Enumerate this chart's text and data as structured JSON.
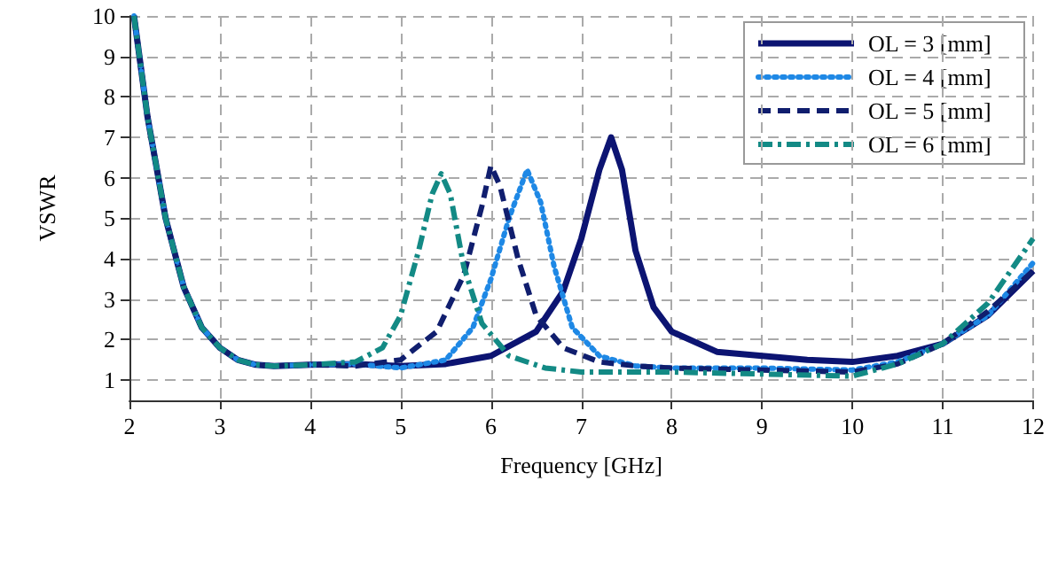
{
  "chart_data": {
    "type": "line",
    "xlabel": "Frequency [GHz]",
    "ylabel": "VSWR",
    "xlim": [
      2,
      12
    ],
    "xticks": [
      2,
      3,
      4,
      5,
      6,
      7,
      8,
      9,
      10,
      11,
      12
    ],
    "ylim": [
      0.5,
      10
    ],
    "yticks": [
      1,
      2,
      3,
      4,
      5,
      6,
      7,
      8,
      9,
      10
    ],
    "grid": true,
    "legend": "top right",
    "marker": "none",
    "series": [
      {
        "name": "OL = 3 [mm]",
        "color": "#0c1472",
        "line_style": "solid",
        "x": [
          2.05,
          2.2,
          2.4,
          2.6,
          2.8,
          3.0,
          3.2,
          3.4,
          3.6,
          4,
          4.5,
          5,
          5.5,
          6,
          6.5,
          6.8,
          7.0,
          7.2,
          7.33,
          7.45,
          7.6,
          7.8,
          8.0,
          8.5,
          9,
          9.5,
          10,
          10.5,
          11,
          11.5,
          12
        ],
        "values": [
          10,
          7.5,
          5,
          3.3,
          2.3,
          1.8,
          1.5,
          1.38,
          1.35,
          1.38,
          1.4,
          1.35,
          1.4,
          1.6,
          2.2,
          3.2,
          4.5,
          6.2,
          7,
          6.2,
          4.2,
          2.8,
          2.2,
          1.7,
          1.6,
          1.5,
          1.45,
          1.6,
          1.9,
          2.6,
          3.7
        ]
      },
      {
        "name": "OL = 4 [mm]",
        "color": "#1e88e5",
        "line_style": "dotted",
        "x": [
          2.05,
          2.2,
          2.4,
          2.6,
          2.8,
          3.0,
          3.2,
          3.4,
          3.6,
          4,
          4.5,
          5,
          5.5,
          5.8,
          6.0,
          6.2,
          6.4,
          6.55,
          6.7,
          6.9,
          7.2,
          7.6,
          8,
          9,
          10,
          10.5,
          11,
          11.5,
          12
        ],
        "values": [
          10,
          7.5,
          5,
          3.3,
          2.3,
          1.8,
          1.5,
          1.38,
          1.35,
          1.38,
          1.4,
          1.3,
          1.5,
          2.3,
          3.5,
          5,
          6.2,
          5.4,
          3.8,
          2.3,
          1.6,
          1.35,
          1.3,
          1.3,
          1.25,
          1.45,
          1.9,
          2.6,
          3.9
        ]
      },
      {
        "name": "OL = 5 [mm]",
        "color": "#101e6e",
        "line_style": "dashed",
        "x": [
          2.05,
          2.2,
          2.4,
          2.6,
          2.8,
          3.0,
          3.2,
          3.4,
          3.6,
          4,
          4.5,
          5,
          5.4,
          5.7,
          5.9,
          6.0,
          6.1,
          6.3,
          6.5,
          6.8,
          7.2,
          7.6,
          8,
          9,
          10,
          10.5,
          11,
          11.5,
          12
        ],
        "values": [
          10,
          7.5,
          5,
          3.3,
          2.3,
          1.8,
          1.5,
          1.38,
          1.35,
          1.38,
          1.35,
          1.5,
          2.2,
          3.6,
          5.3,
          6.3,
          5.8,
          4,
          2.6,
          1.8,
          1.45,
          1.35,
          1.3,
          1.25,
          1.2,
          1.4,
          1.9,
          2.7,
          3.7
        ]
      },
      {
        "name": "OL = 6 [mm]",
        "color": "#138a85",
        "line_style": "dashdot",
        "x": [
          2.05,
          2.2,
          2.4,
          2.6,
          2.8,
          3.0,
          3.2,
          3.4,
          3.6,
          4,
          4.5,
          4.8,
          5.0,
          5.2,
          5.35,
          5.45,
          5.55,
          5.7,
          5.9,
          6.2,
          6.6,
          7,
          8,
          9,
          10,
          10.5,
          11,
          11.5,
          12
        ],
        "values": [
          10,
          7.5,
          5,
          3.3,
          2.3,
          1.8,
          1.5,
          1.38,
          1.35,
          1.38,
          1.45,
          1.8,
          2.6,
          4.2,
          5.6,
          6.1,
          5.6,
          3.8,
          2.4,
          1.6,
          1.3,
          1.2,
          1.2,
          1.15,
          1.1,
          1.4,
          1.9,
          2.9,
          4.5
        ]
      }
    ]
  }
}
